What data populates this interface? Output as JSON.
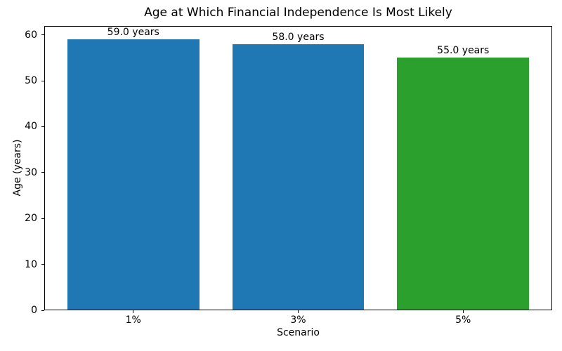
{
  "chart_data": {
    "type": "bar",
    "title": "Age at Which Financial Independence Is Most Likely",
    "xlabel": "Scenario",
    "ylabel": "Age (years)",
    "categories": [
      "1%",
      "3%",
      "5%"
    ],
    "values": [
      59.0,
      58.0,
      55.0
    ],
    "bar_labels": [
      "59.0 years",
      "58.0 years",
      "55.0 years"
    ],
    "bar_colors": [
      "#1f77b4",
      "#1f77b4",
      "#2ca02c"
    ],
    "ylim": [
      0,
      61.95
    ],
    "yticks": [
      0,
      10,
      20,
      30,
      40,
      50,
      60
    ],
    "grid": false,
    "legend": false,
    "colors": {
      "spine": "#000000",
      "text": "#000000",
      "background": "#ffffff"
    }
  }
}
